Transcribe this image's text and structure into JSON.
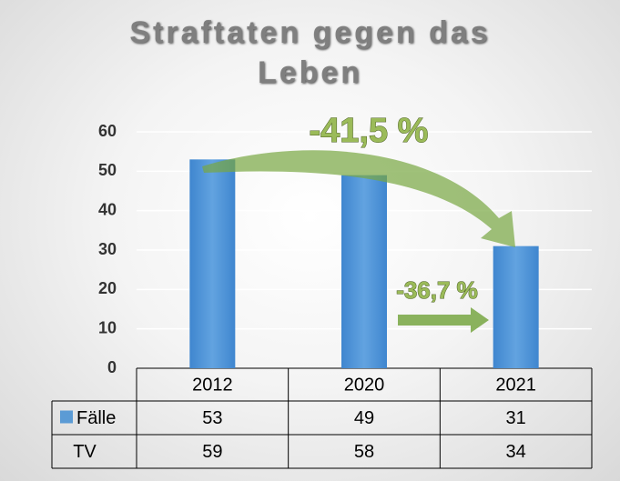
{
  "chart_data": {
    "type": "bar",
    "title": "Straftaten gegen das Leben",
    "categories": [
      "2012",
      "2020",
      "2021"
    ],
    "series": [
      {
        "name": "Fälle",
        "color": "#5b9bd5",
        "values": [
          53,
          49,
          31
        ]
      }
    ],
    "data_table": {
      "rows": [
        {
          "name": "TV",
          "values": [
            59,
            58,
            34
          ]
        }
      ]
    },
    "ylim": [
      0,
      60
    ],
    "yticks": [
      0,
      10,
      20,
      30,
      40,
      50,
      60
    ],
    "grid": true,
    "annotations": [
      "-41,5 %",
      "-36,7 %"
    ]
  }
}
